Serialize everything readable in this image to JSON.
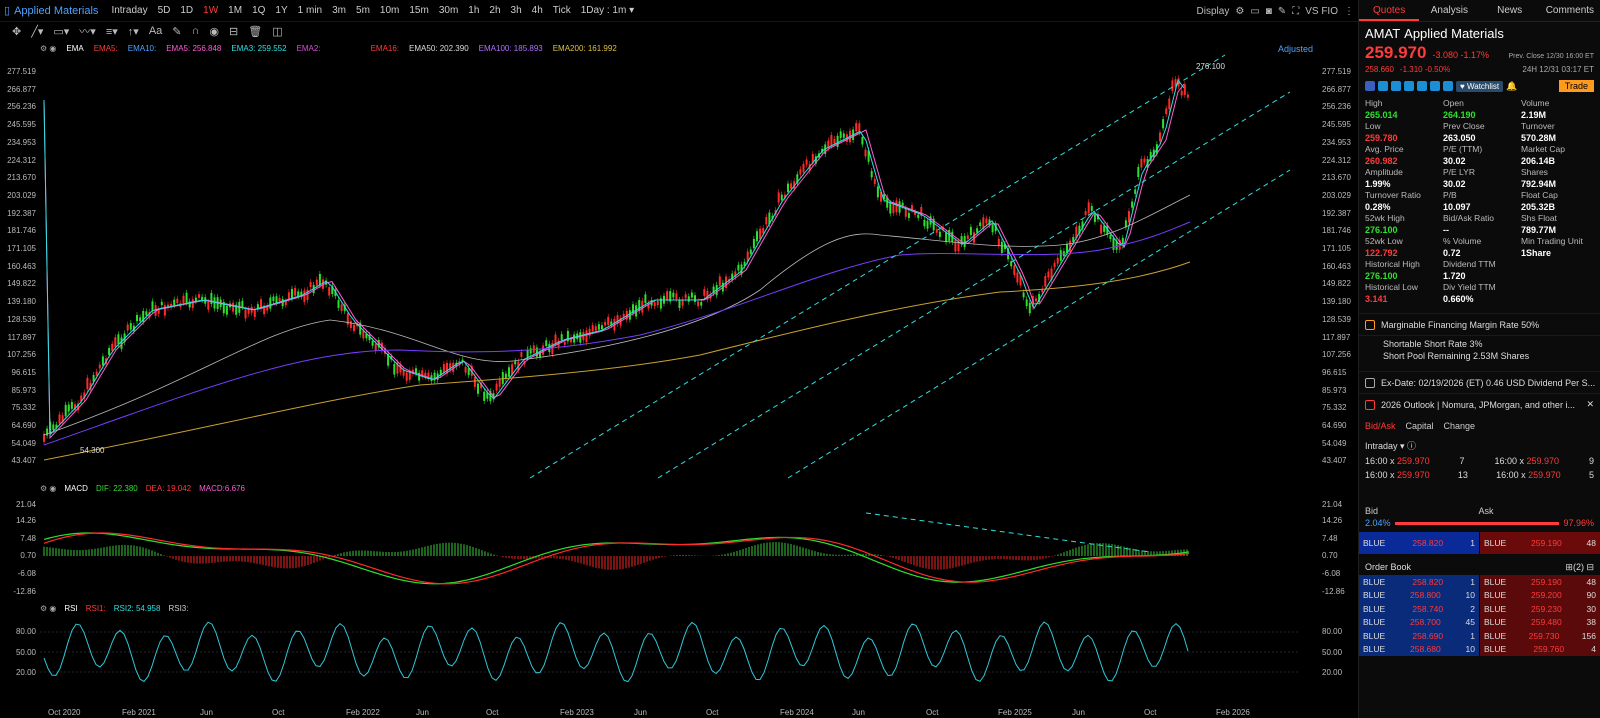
{
  "header": {
    "symbol": "Applied Materials",
    "timeframes": [
      "Intraday",
      "5D",
      "1D",
      "1W",
      "1M",
      "1Q",
      "1Y",
      "1 min",
      "3m",
      "5m",
      "10m",
      "15m",
      "30m",
      "1h",
      "2h",
      "3h",
      "4h",
      "Tick"
    ],
    "active": "1W",
    "period": "1Day : 1m",
    "display": "Display",
    "vs": "VS FIO"
  },
  "ema_row": {
    "name": "EMA",
    "e1": "EMA5:",
    "e2": "EMA10:",
    "e3": "EMA5:",
    "e3v": "256.848",
    "e4": "EMA3:",
    "e4v": "259.552",
    "e5": "EMA2:",
    "e6": "EMA16:",
    "e7": "EMA50:",
    "e7v": "202.390",
    "e8": "EMA100:",
    "e8v": "185.893",
    "e9": "EMA200:",
    "e9v": "161.992",
    "adjust": "Adjusted"
  },
  "price_axis": [
    "277.519",
    "266.877",
    "256.236",
    "245.595",
    "234.953",
    "224.312",
    "213.670",
    "203.029",
    "192.387",
    "181.746",
    "171.105",
    "160.463",
    "149.822",
    "139.180",
    "128.539",
    "117.897",
    "107.256",
    "96.615",
    "85.973",
    "75.332",
    "64.690",
    "54.049",
    "43.407"
  ],
  "price_notes": {
    "high": "276.100",
    "low": "54.300"
  },
  "macd": {
    "name": "MACD",
    "dif": "DIF: 22.380",
    "dea": "DEA: 19.042",
    "macd": "MACD:6.676",
    "axis": [
      "21.04",
      "14.26",
      "7.48",
      "0.70",
      "-6.08",
      "-12.86"
    ]
  },
  "rsi": {
    "name": "RSI",
    "r1": "RSI1:",
    "r2": "RSI2:",
    "r2v": "54.958",
    "r3": "RSI3:",
    "axis": [
      "80.00",
      "50.00",
      "20.00"
    ]
  },
  "x_axis": [
    "Oct 2020",
    "Feb 2021",
    "Jun",
    "Oct",
    "Feb 2022",
    "Jun",
    "Oct",
    "Feb 2023",
    "Jun",
    "Oct",
    "Feb 2024",
    "Jun",
    "Oct",
    "Feb 2025",
    "Jun",
    "Oct",
    "Feb 2026"
  ],
  "panel": {
    "tabs": [
      "Quotes",
      "Analysis",
      "News",
      "Comments"
    ],
    "ticker": "AMAT",
    "name": "Applied Materials",
    "price": "259.970",
    "change": "-3.080 -1.17%",
    "prev": "Prev. Close 12/30 16:00 ET",
    "ah_price": "258.660",
    "ah_change": "-1.310 -0.50%",
    "ah_time": "24H 12/31 03:17 ET",
    "watchlist": "Watchlist",
    "trade": "Trade",
    "stats": [
      [
        "High",
        "265.014",
        "g"
      ],
      [
        "Open",
        "264.190",
        "g"
      ],
      [
        "Volume",
        "2.19M",
        ""
      ],
      [
        "Low",
        "259.780",
        "r"
      ],
      [
        "Prev Close",
        "263.050",
        ""
      ],
      [
        "Turnover",
        "570.28M",
        ""
      ],
      [
        "Avg. Price",
        "260.982",
        "r"
      ],
      [
        "P/E (TTM)",
        "30.02",
        ""
      ],
      [
        "Market Cap",
        "206.14B",
        ""
      ],
      [
        "Amplitude",
        "1.99%",
        ""
      ],
      [
        "P/E LYR",
        "30.02",
        ""
      ],
      [
        "Shares",
        "792.94M",
        ""
      ],
      [
        "Turnover Ratio",
        "0.28%",
        ""
      ],
      [
        "P/B",
        "10.097",
        ""
      ],
      [
        "Float Cap",
        "205.32B",
        ""
      ],
      [
        "52wk High",
        "276.100",
        "g"
      ],
      [
        "Bid/Ask Ratio",
        "--",
        ""
      ],
      [
        "Shs Float",
        "789.77M",
        ""
      ],
      [
        "52wk Low",
        "122.792",
        "r"
      ],
      [
        "% Volume",
        "0.72",
        ""
      ],
      [
        "Min Trading Unit",
        "1Share",
        ""
      ],
      [
        "Historical High",
        "276.100",
        "g"
      ],
      [
        "Dividend TTM",
        "1.720",
        ""
      ],
      [
        "",
        "",
        ""
      ],
      [
        "Historical Low",
        "3.141",
        "r"
      ],
      [
        "Div Yield TTM",
        "0.660%",
        ""
      ],
      [
        "",
        "",
        ""
      ]
    ],
    "info": [
      "Marginable Financing Margin Rate 50%",
      "Shortable Short Rate 3%",
      "Short Pool Remaining 2.53M Shares",
      "Ex-Date: 02/19/2026 (ET)  0.46 USD Dividend Per S...",
      "2026 Outlook | Nomura, JPMorgan, and other i..."
    ],
    "bidtabs": [
      "Bid/Ask",
      "Capital",
      "Change"
    ],
    "intraday": "Intraday",
    "ticks": [
      [
        "16:00 x",
        "259.970",
        "7",
        "16:00 x",
        "259.970",
        "9"
      ],
      [
        "16:00 x",
        "259.970",
        "13",
        "16:00 x",
        "259.970",
        "5"
      ]
    ],
    "bid": "Bid",
    "ask": "Ask",
    "bidpct": "2.04%",
    "askpct": "97.96%",
    "best": [
      "BLUE",
      "258.820",
      "1",
      "BLUE",
      "259.190",
      "48"
    ],
    "orderbook": "Order Book",
    "book": [
      [
        "BLUE",
        "258.820",
        "1",
        "BLUE",
        "259.190",
        "48"
      ],
      [
        "BLUE",
        "258.800",
        "10",
        "BLUE",
        "259.200",
        "90"
      ],
      [
        "BLUE",
        "258.740",
        "2",
        "BLUE",
        "259.230",
        "30"
      ],
      [
        "BLUE",
        "258.700",
        "45",
        "BLUE",
        "259.480",
        "38"
      ],
      [
        "BLUE",
        "258.690",
        "1",
        "BLUE",
        "259.730",
        "156"
      ],
      [
        "BLUE",
        "258.680",
        "10",
        "BLUE",
        "259.760",
        "4"
      ]
    ]
  }
}
